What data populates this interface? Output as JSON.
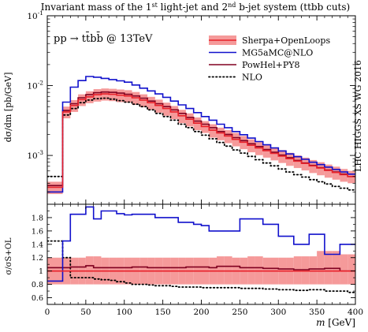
{
  "chart_data": {
    "type": "line",
    "title_pre": "Invariant mass of the 1",
    "title_sup1": "st",
    "title_mid": " light-jet and 2",
    "title_sup2": "nd",
    "title_post": " b-jet system (ttbb cuts)",
    "process_label": "pp → tt̄bb̄ @ 13TeV",
    "side_label": "LHC HIGGS XS WG 2016",
    "xlabel_var": "m",
    "xlabel_unit": "[GeV]",
    "ylabel_top": "dσ/dm [pb/GeV]",
    "ylabel_bottom": "σ/σS+OL",
    "x_ticks": [
      "0",
      "50",
      "100",
      "150",
      "200",
      "250",
      "300",
      "350",
      "400"
    ],
    "x_tick_values": [
      0,
      50,
      100,
      150,
      200,
      250,
      300,
      350,
      400
    ],
    "xlim": [
      0,
      400
    ],
    "top_yscale": "log",
    "top_ylim": [
      0.0002,
      0.1
    ],
    "top_y_ticks": [
      {
        "value": 0.1,
        "base": "10",
        "exp": "-1"
      },
      {
        "value": 0.01,
        "base": "10",
        "exp": "-2"
      },
      {
        "value": 0.001,
        "base": "10",
        "exp": "-3"
      }
    ],
    "bottom_ylim": [
      0.5,
      2.0
    ],
    "bottom_y_ticks": [
      "0.6",
      "0.8",
      "1",
      "1.2",
      "1.4",
      "1.6",
      "1.8"
    ],
    "bottom_y_tick_values": [
      0.6,
      0.8,
      1.0,
      1.2,
      1.4,
      1.6,
      1.8
    ],
    "bin_edges": [
      0,
      20,
      30,
      40,
      50,
      60,
      70,
      80,
      90,
      100,
      110,
      120,
      130,
      140,
      150,
      160,
      170,
      180,
      190,
      200,
      210,
      220,
      230,
      240,
      250,
      260,
      270,
      280,
      290,
      300,
      310,
      320,
      330,
      340,
      350,
      360,
      370,
      380,
      390,
      400
    ],
    "legend": [
      {
        "label": "Sherpa+OpenLoops",
        "style": "band",
        "color": "#e8222b",
        "fill": "#f59a9a"
      },
      {
        "label": "MG5aMC@NLO",
        "style": "solid",
        "color": "#1010cc"
      },
      {
        "label": "PowHel+PY8",
        "style": "solid",
        "color": "#800020"
      },
      {
        "label": "NLO",
        "style": "dotted",
        "color": "#000000"
      }
    ],
    "series": [
      {
        "name": "Sherpa+OpenLoops",
        "values": [
          0.00035,
          0.0042,
          0.0052,
          0.0063,
          0.0069,
          0.0074,
          0.0076,
          0.0075,
          0.0073,
          0.0071,
          0.0067,
          0.0062,
          0.0057,
          0.0052,
          0.0047,
          0.0042,
          0.0037,
          0.0033,
          0.0029,
          0.0026,
          0.0023,
          0.0021,
          0.0019,
          0.0017,
          0.00155,
          0.0014,
          0.00128,
          0.00117,
          0.00107,
          0.00098,
          0.0009,
          0.00083,
          0.00077,
          0.00071,
          0.00066,
          0.00061,
          0.00057,
          0.00053,
          0.0005
        ],
        "band_low": [
          0.00028,
          0.0034,
          0.0042,
          0.0051,
          0.0056,
          0.0059,
          0.0061,
          0.006,
          0.0058,
          0.0057,
          0.0053,
          0.0049,
          0.0045,
          0.0041,
          0.0037,
          0.0033,
          0.0029,
          0.0026,
          0.0023,
          0.0021,
          0.0018,
          0.00165,
          0.0015,
          0.00135,
          0.00123,
          0.00111,
          0.00101,
          0.00093,
          0.00085,
          0.00078,
          0.00071,
          0.00066,
          0.00061,
          0.00056,
          0.00052,
          0.00048,
          0.00045,
          0.00042,
          0.0004
        ],
        "band_high": [
          0.00042,
          0.005,
          0.0062,
          0.0075,
          0.0083,
          0.0089,
          0.0091,
          0.009,
          0.0088,
          0.0086,
          0.0081,
          0.0075,
          0.0069,
          0.0063,
          0.0057,
          0.0051,
          0.0045,
          0.004,
          0.0035,
          0.0031,
          0.0028,
          0.0025,
          0.0023,
          0.0021,
          0.0019,
          0.0017,
          0.00155,
          0.00142,
          0.0013,
          0.00119,
          0.00109,
          0.001,
          0.00093,
          0.00086,
          0.0008,
          0.00074,
          0.00069,
          0.00064,
          0.0006
        ]
      },
      {
        "name": "MG5aMC@NLO",
        "values": [
          0.0003,
          0.0058,
          0.0095,
          0.0118,
          0.0135,
          0.0132,
          0.0127,
          0.0122,
          0.0117,
          0.0112,
          0.0102,
          0.0092,
          0.0084,
          0.0076,
          0.0068,
          0.006,
          0.0053,
          0.0047,
          0.0041,
          0.0036,
          0.0032,
          0.0028,
          0.0025,
          0.0022,
          0.00198,
          0.00177,
          0.00158,
          0.00142,
          0.00128,
          0.00116,
          0.00105,
          0.00096,
          0.00088,
          0.0008,
          0.00074,
          0.00068,
          0.00063,
          0.00058,
          0.00054
        ]
      },
      {
        "name": "PowHel+PY8",
        "values": [
          0.00037,
          0.0044,
          0.0055,
          0.0067,
          0.0074,
          0.0079,
          0.0081,
          0.008,
          0.0078,
          0.0075,
          0.0071,
          0.0066,
          0.006,
          0.0055,
          0.005,
          0.0045,
          0.004,
          0.0035,
          0.0031,
          0.0028,
          0.0025,
          0.0022,
          0.002,
          0.0018,
          0.00163,
          0.00147,
          0.00134,
          0.00122,
          0.00111,
          0.00101,
          0.00093,
          0.00085,
          0.00078,
          0.00072,
          0.00067,
          0.00062,
          0.00058,
          0.00054,
          0.0005
        ]
      },
      {
        "name": "NLO",
        "values": [
          0.0005,
          0.0038,
          0.0047,
          0.0057,
          0.0062,
          0.0065,
          0.0066,
          0.0064,
          0.0061,
          0.0058,
          0.0054,
          0.005,
          0.0045,
          0.004,
          0.0036,
          0.0032,
          0.0028,
          0.0025,
          0.0022,
          0.00195,
          0.00173,
          0.00153,
          0.00136,
          0.0012,
          0.00108,
          0.00097,
          0.00087,
          0.00078,
          0.00071,
          0.00064,
          0.00058,
          0.00053,
          0.00049,
          0.00045,
          0.00042,
          0.00039,
          0.00036,
          0.00034,
          0.00032
        ]
      }
    ],
    "ratio_band_low": [
      0.8,
      0.8,
      0.8,
      0.8,
      0.8,
      0.8,
      0.8,
      0.8,
      0.8,
      0.8,
      0.8,
      0.8,
      0.8,
      0.8,
      0.8,
      0.8,
      0.8,
      0.8,
      0.8,
      0.8,
      0.8,
      0.8,
      0.8,
      0.8,
      0.8,
      0.8,
      0.8,
      0.8,
      0.8,
      0.8,
      0.8,
      0.8,
      0.8,
      0.8,
      0.8,
      0.8,
      0.8,
      0.8,
      0.8
    ],
    "ratio_band_high": [
      1.2,
      1.2,
      1.2,
      1.2,
      1.22,
      1.22,
      1.2,
      1.2,
      1.2,
      1.2,
      1.2,
      1.2,
      1.2,
      1.2,
      1.2,
      1.2,
      1.2,
      1.2,
      1.2,
      1.2,
      1.2,
      1.22,
      1.22,
      1.2,
      1.2,
      1.22,
      1.22,
      1.2,
      1.2,
      1.2,
      1.2,
      1.22,
      1.22,
      1.22,
      1.3,
      1.3,
      1.3,
      1.25,
      1.25
    ],
    "ratios": [
      {
        "name": "Sherpa+OpenLoops",
        "values": [
          1,
          1,
          1,
          1,
          1,
          1,
          1,
          1,
          1,
          1,
          1,
          1,
          1,
          1,
          1,
          1,
          1,
          1,
          1,
          1,
          1,
          1,
          1,
          1,
          1,
          1,
          1,
          1,
          1,
          1,
          1,
          1,
          1,
          1,
          1,
          1,
          1,
          1,
          1
        ]
      },
      {
        "name": "MG5aMC@NLO",
        "values": [
          0.85,
          1.45,
          1.85,
          1.85,
          1.96,
          1.78,
          1.9,
          1.9,
          1.86,
          1.84,
          1.85,
          1.85,
          1.85,
          1.8,
          1.8,
          1.8,
          1.73,
          1.73,
          1.7,
          1.68,
          1.6,
          1.6,
          1.6,
          1.6,
          1.78,
          1.78,
          1.78,
          1.7,
          1.7,
          1.52,
          1.52,
          1.4,
          1.4,
          1.55,
          1.55,
          1.25,
          1.25,
          1.4,
          1.4
        ]
      },
      {
        "name": "PowHel+PY8",
        "values": [
          1.05,
          1.05,
          1.06,
          1.06,
          1.08,
          1.05,
          1.05,
          1.05,
          1.05,
          1.05,
          1.06,
          1.06,
          1.05,
          1.05,
          1.05,
          1.05,
          1.05,
          1.06,
          1.06,
          1.06,
          1.05,
          1.07,
          1.07,
          1.07,
          1.05,
          1.05,
          1.05,
          1.04,
          1.04,
          1.03,
          1.03,
          1.02,
          1.02,
          1.03,
          1.03,
          1.04,
          1.04,
          1.0,
          1.0
        ]
      },
      {
        "name": "NLO",
        "values": [
          1.45,
          1.2,
          0.9,
          0.9,
          0.9,
          0.88,
          0.87,
          0.86,
          0.84,
          0.82,
          0.8,
          0.8,
          0.79,
          0.78,
          0.78,
          0.77,
          0.76,
          0.76,
          0.76,
          0.75,
          0.75,
          0.75,
          0.75,
          0.75,
          0.74,
          0.74,
          0.74,
          0.73,
          0.73,
          0.72,
          0.72,
          0.71,
          0.71,
          0.72,
          0.72,
          0.7,
          0.7,
          0.7,
          0.68
        ]
      }
    ]
  }
}
